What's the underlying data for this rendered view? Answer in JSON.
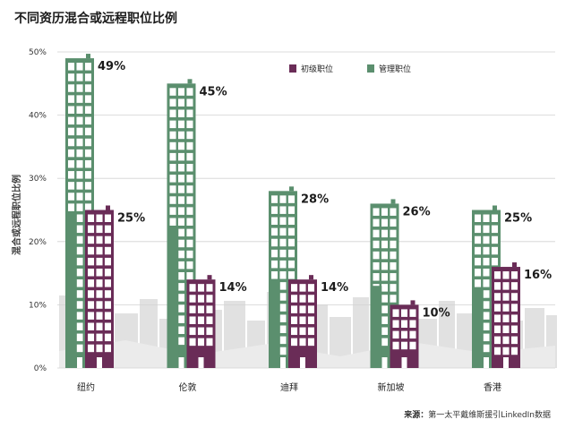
{
  "title": "不同资历混合或远程职位比例",
  "source": {
    "label": "来源：",
    "text": "第一太平戴维斯援引LinkedIn数据"
  },
  "colors": {
    "management": "#5b8f6e",
    "junior": "#6a2c57",
    "window": "#ffffff",
    "grid": "#d2d2d2",
    "skyline": "#e1e1e1"
  },
  "chart_data": {
    "type": "bar",
    "categories": [
      "纽约",
      "伦敦",
      "迪拜",
      "新加坡",
      "香港"
    ],
    "series": [
      {
        "name": "管理职位",
        "values": [
          49,
          45,
          28,
          26,
          25
        ],
        "labels": [
          "49%",
          "45%",
          "28%",
          "26%",
          "25%"
        ]
      },
      {
        "name": "初级职位",
        "values": [
          25,
          14,
          14,
          10,
          16
        ],
        "labels": [
          "25%",
          "14%",
          "14%",
          "10%",
          "16%"
        ]
      }
    ],
    "ylabel": "混合或远程职位比例",
    "ylim": [
      0,
      50
    ],
    "yticks": [
      "0%",
      "10%",
      "20%",
      "30%",
      "40%",
      "50%"
    ],
    "legend_position": "top-right",
    "grid": true
  }
}
